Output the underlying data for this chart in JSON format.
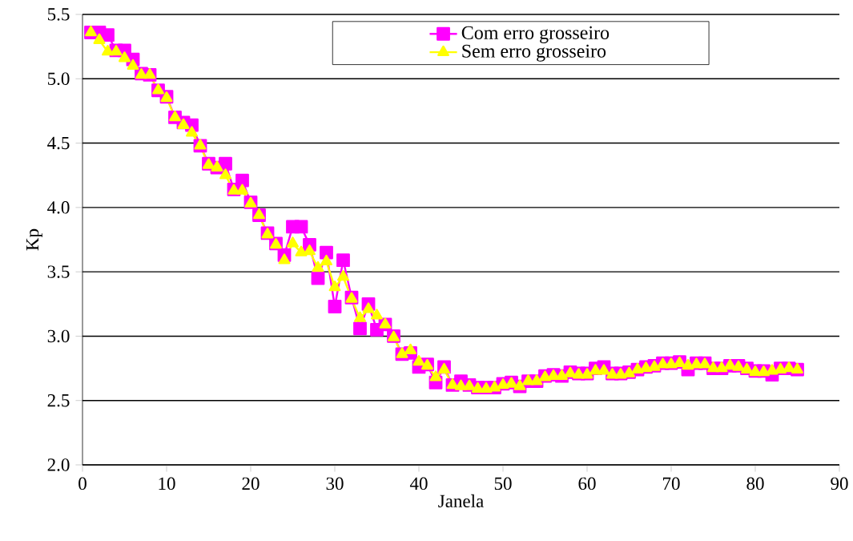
{
  "chart_data": {
    "type": "line",
    "xlabel": "Janela",
    "ylabel": "Kp",
    "x": [
      1,
      2,
      3,
      4,
      5,
      6,
      7,
      8,
      9,
      10,
      11,
      12,
      13,
      14,
      15,
      16,
      17,
      18,
      19,
      20,
      21,
      22,
      23,
      24,
      25,
      26,
      27,
      28,
      29,
      30,
      31,
      32,
      33,
      34,
      35,
      36,
      37,
      38,
      39,
      40,
      41,
      42,
      43,
      44,
      45,
      46,
      47,
      48,
      49,
      50,
      51,
      52,
      53,
      54,
      55,
      56,
      57,
      58,
      59,
      60,
      61,
      62,
      63,
      64,
      65,
      66,
      67,
      68,
      69,
      70,
      71,
      72,
      73,
      74,
      75,
      76,
      77,
      78,
      79,
      80,
      81,
      82,
      83,
      84,
      85
    ],
    "series": [
      {
        "name": "Com erro grosseiro",
        "color": "#ff00ff",
        "marker": "square",
        "values": [
          5.36,
          5.36,
          5.34,
          5.22,
          5.22,
          5.15,
          5.04,
          5.03,
          4.91,
          4.86,
          4.7,
          4.66,
          4.64,
          4.48,
          4.34,
          4.31,
          4.34,
          4.14,
          4.21,
          4.04,
          3.94,
          3.8,
          3.72,
          3.63,
          3.85,
          3.85,
          3.71,
          3.45,
          3.65,
          3.23,
          3.59,
          3.3,
          3.06,
          3.25,
          3.05,
          3.09,
          3.0,
          2.86,
          2.87,
          2.76,
          2.78,
          2.64,
          2.76,
          2.62,
          2.65,
          2.62,
          2.6,
          2.6,
          2.6,
          2.63,
          2.64,
          2.61,
          2.65,
          2.65,
          2.69,
          2.7,
          2.69,
          2.72,
          2.71,
          2.71,
          2.75,
          2.76,
          2.71,
          2.71,
          2.72,
          2.74,
          2.76,
          2.77,
          2.79,
          2.79,
          2.8,
          2.74,
          2.79,
          2.79,
          2.75,
          2.75,
          2.77,
          2.77,
          2.75,
          2.73,
          2.73,
          2.7,
          2.75,
          2.75,
          2.74
        ]
      },
      {
        "name": "Sem erro grosseiro",
        "color": "#ffff00",
        "marker": "triangle",
        "values": [
          5.36,
          5.3,
          5.21,
          5.21,
          5.16,
          5.1,
          5.03,
          5.03,
          4.91,
          4.85,
          4.7,
          4.64,
          4.58,
          4.48,
          4.33,
          4.31,
          4.25,
          4.13,
          4.13,
          4.03,
          3.94,
          3.79,
          3.71,
          3.59,
          3.72,
          3.65,
          3.66,
          3.53,
          3.58,
          3.38,
          3.46,
          3.29,
          3.14,
          3.21,
          3.16,
          3.09,
          2.99,
          2.86,
          2.89,
          2.8,
          2.77,
          2.68,
          2.74,
          2.62,
          2.61,
          2.61,
          2.59,
          2.59,
          2.6,
          2.62,
          2.63,
          2.61,
          2.65,
          2.65,
          2.68,
          2.69,
          2.69,
          2.71,
          2.7,
          2.7,
          2.73,
          2.73,
          2.7,
          2.7,
          2.71,
          2.74,
          2.75,
          2.76,
          2.78,
          2.78,
          2.79,
          2.77,
          2.78,
          2.78,
          2.75,
          2.75,
          2.77,
          2.76,
          2.74,
          2.72,
          2.72,
          2.73,
          2.74,
          2.75,
          2.74
        ]
      }
    ],
    "xlim": [
      0,
      90
    ],
    "xticks": [
      0,
      10,
      20,
      30,
      40,
      50,
      60,
      70,
      80,
      90
    ],
    "ylim": [
      2.0,
      5.5
    ],
    "yticks": [
      {
        "value": 2.0,
        "label": "2.0"
      },
      {
        "value": 2.5,
        "label": "2.5"
      },
      {
        "value": 3.0,
        "label": "3.0"
      },
      {
        "value": 3.5,
        "label": "3.5"
      },
      {
        "value": 4.0,
        "label": "4.0"
      },
      {
        "value": 4.5,
        "label": "4.5"
      },
      {
        "value": 5.0,
        "label": "5.0"
      },
      {
        "value": 5.5,
        "label": "5.5"
      }
    ],
    "grid": "y",
    "legend": "top right",
    "line_style": "solid"
  }
}
